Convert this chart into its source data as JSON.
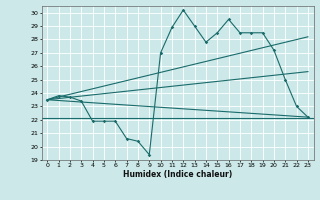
{
  "title": "",
  "xlabel": "Humidex (Indice chaleur)",
  "bg_color": "#cce8e8",
  "grid_color": "#ffffff",
  "line_color": "#1a6b6b",
  "xlim": [
    -0.5,
    23.5
  ],
  "ylim": [
    19,
    30.5
  ],
  "xticks": [
    0,
    1,
    2,
    3,
    4,
    5,
    6,
    7,
    8,
    9,
    10,
    11,
    12,
    13,
    14,
    15,
    16,
    17,
    18,
    19,
    20,
    21,
    22,
    23
  ],
  "yticks": [
    19,
    20,
    21,
    22,
    23,
    24,
    25,
    26,
    27,
    28,
    29,
    30
  ],
  "x": [
    0,
    1,
    2,
    3,
    4,
    5,
    6,
    7,
    8,
    9,
    10,
    11,
    12,
    13,
    14,
    15,
    16,
    17,
    18,
    19,
    20,
    21,
    22,
    23
  ],
  "line1": [
    23.5,
    23.8,
    23.7,
    23.4,
    21.9,
    21.9,
    21.9,
    20.6,
    20.4,
    19.4,
    27.0,
    28.9,
    30.2,
    29.0,
    27.8,
    28.5,
    29.5,
    28.5,
    28.5,
    28.5,
    27.2,
    25.0,
    23.0,
    22.2
  ],
  "trend_low_y0": 23.5,
  "trend_low_y1": 22.2,
  "trend_mid_y0": 23.5,
  "trend_mid_y1": 25.6,
  "trend_high_y0": 23.5,
  "trend_high_y1": 28.2,
  "flat_y": 22.1
}
